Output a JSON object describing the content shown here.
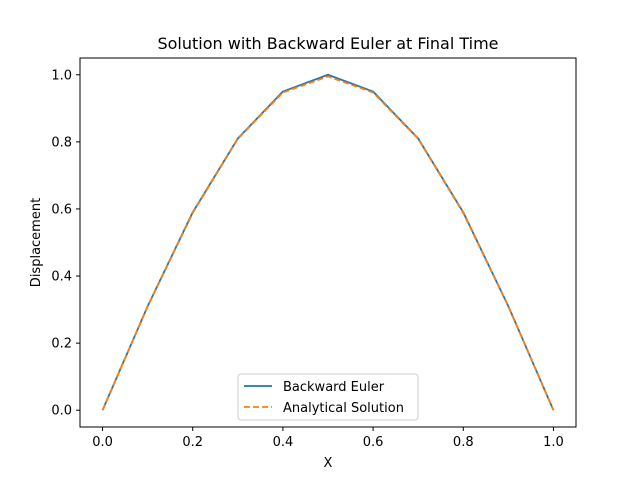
{
  "chart_data": {
    "type": "line",
    "title": "Solution with Backward Euler at Final Time",
    "xlabel": "X",
    "ylabel": "Displacement",
    "xlim": [
      -0.05,
      1.05
    ],
    "ylim": [
      -0.05,
      1.05
    ],
    "xticks": [
      0.0,
      0.2,
      0.4,
      0.6,
      0.8,
      1.0
    ],
    "xtick_labels": [
      "0.0",
      "0.2",
      "0.4",
      "0.6",
      "0.8",
      "1.0"
    ],
    "yticks": [
      0.0,
      0.2,
      0.4,
      0.6,
      0.8,
      1.0
    ],
    "ytick_labels": [
      "0.0",
      "0.2",
      "0.4",
      "0.6",
      "0.8",
      "1.0"
    ],
    "grid": false,
    "legend_position": "lower-center",
    "x": [
      0.0,
      0.1,
      0.2,
      0.3,
      0.4,
      0.5,
      0.6,
      0.7,
      0.8,
      0.9,
      1.0
    ],
    "series": [
      {
        "name": "Backward Euler",
        "color": "#1f77b4",
        "line_style": "solid",
        "values": [
          0.0,
          0.31,
          0.59,
          0.81,
          0.95,
          1.0,
          0.95,
          0.81,
          0.59,
          0.31,
          0.0
        ]
      },
      {
        "name": "Analytical Solution",
        "color": "#ff7f0e",
        "line_style": "dashed",
        "values": [
          0.0,
          0.309,
          0.588,
          0.809,
          0.947,
          0.995,
          0.947,
          0.809,
          0.588,
          0.309,
          0.0
        ]
      }
    ]
  }
}
